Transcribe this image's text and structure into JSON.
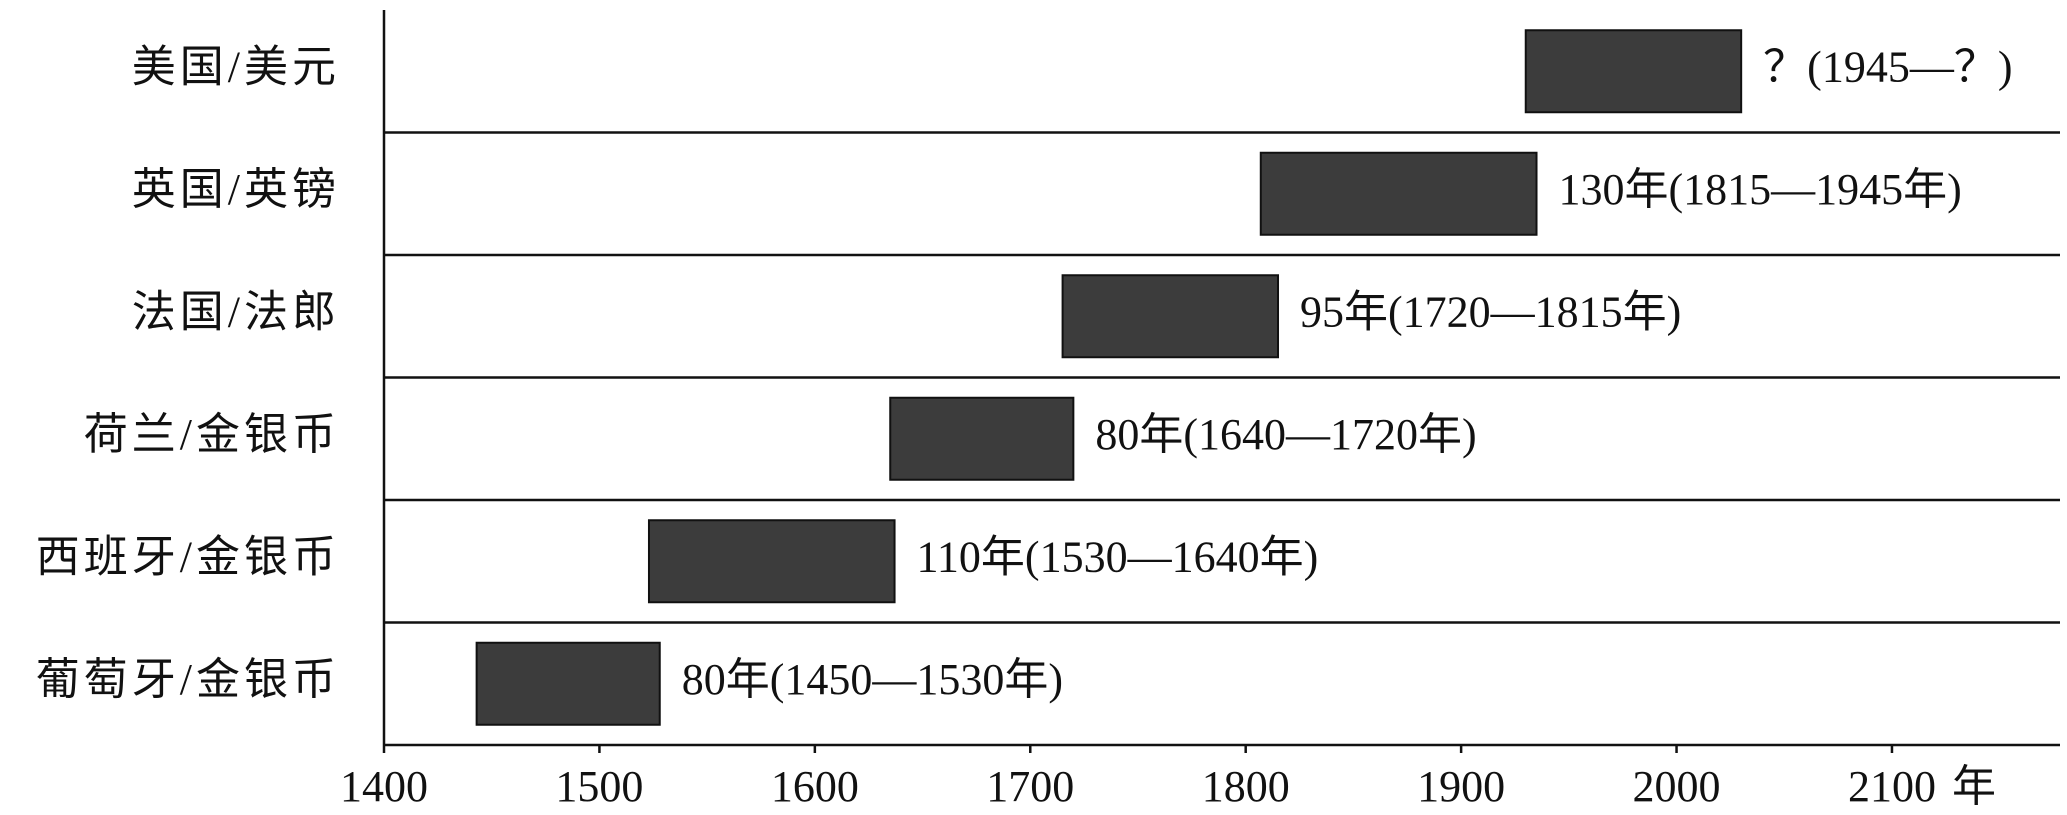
{
  "chart_data": {
    "type": "gantt",
    "categories": [
      "美国/美元",
      "英国/英镑",
      "法国/法郎",
      "荷兰/金银币",
      "西班牙/金银币",
      "葡萄牙/金银币"
    ],
    "start": [
      1930,
      1807,
      1715,
      1635,
      1523,
      1443
    ],
    "end": [
      2030,
      1935,
      1815,
      1720,
      1637,
      1528
    ],
    "value_labels": [
      "？(1945—？)",
      "130年(1815—1945年)",
      "95年(1720—1815年)",
      "80年(1640—1720年)",
      "110年(1530—1640年)",
      "80年(1450—1530年)"
    ],
    "xlim": [
      1400,
      2178
    ],
    "xticks": [
      1400,
      1500,
      1600,
      1700,
      1800,
      1900,
      2000,
      2100
    ],
    "xlabel": "年",
    "color": "#3c3c3c"
  }
}
